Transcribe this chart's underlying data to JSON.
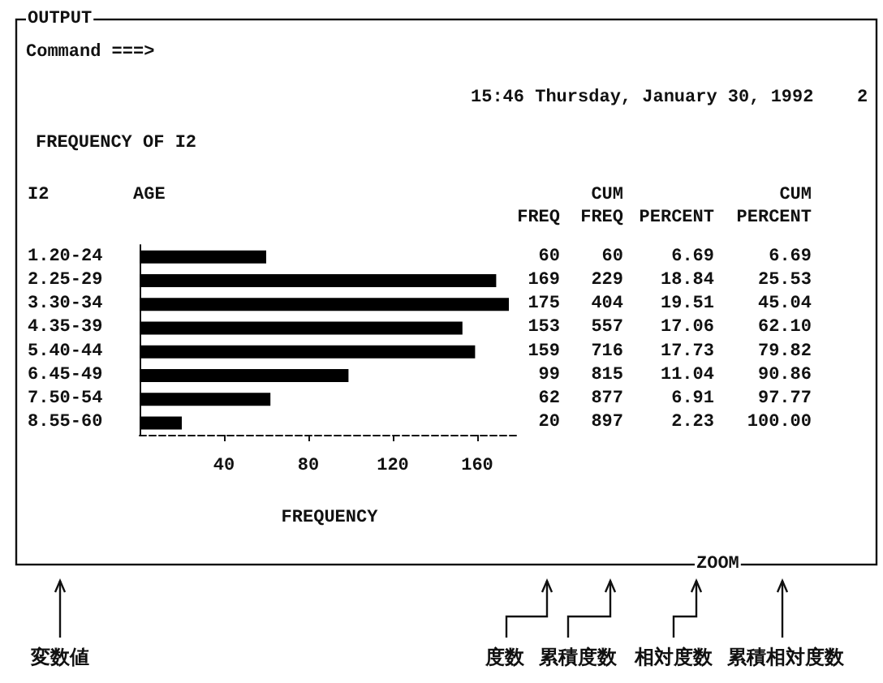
{
  "chart_data": {
    "type": "bar",
    "orientation": "horizontal",
    "title": "FREQUENCY OF I2",
    "xlabel": "FREQUENCY",
    "ylabel": "AGE",
    "categories": [
      "1.20-24",
      "2.25-29",
      "3.30-34",
      "4.35-39",
      "5.40-44",
      "6.45-49",
      "7.50-54",
      "8.55-60"
    ],
    "series": [
      {
        "name": "FREQ",
        "color": "#000000",
        "values": [
          60,
          169,
          175,
          153,
          159,
          99,
          62,
          20
        ]
      }
    ],
    "data_labels": true,
    "xlim": [
      0,
      180
    ],
    "xticks": [
      40,
      80,
      120,
      160
    ],
    "grid": false,
    "legend": false,
    "annotations": [
      "OUTPUT",
      "Command ===>",
      "15:46 Thursday, January 30, 1992",
      "2",
      "I2",
      "ZOOM",
      "変数値",
      "度数",
      "累積度数",
      "相対度数",
      "累積相対度数",
      "CUM",
      "FREQ",
      "60",
      "229",
      "404",
      "557",
      "716",
      "815",
      "877",
      "897",
      "PERCENT",
      "6.69",
      "18.84",
      "19.51",
      "17.06",
      "17.73",
      "11.04",
      "6.91",
      "2.23",
      "CUM",
      "PERCENT",
      "6.69",
      "25.53",
      "45.04",
      "62.10",
      "79.82",
      "90.86",
      "97.77",
      "100.00"
    ]
  }
}
